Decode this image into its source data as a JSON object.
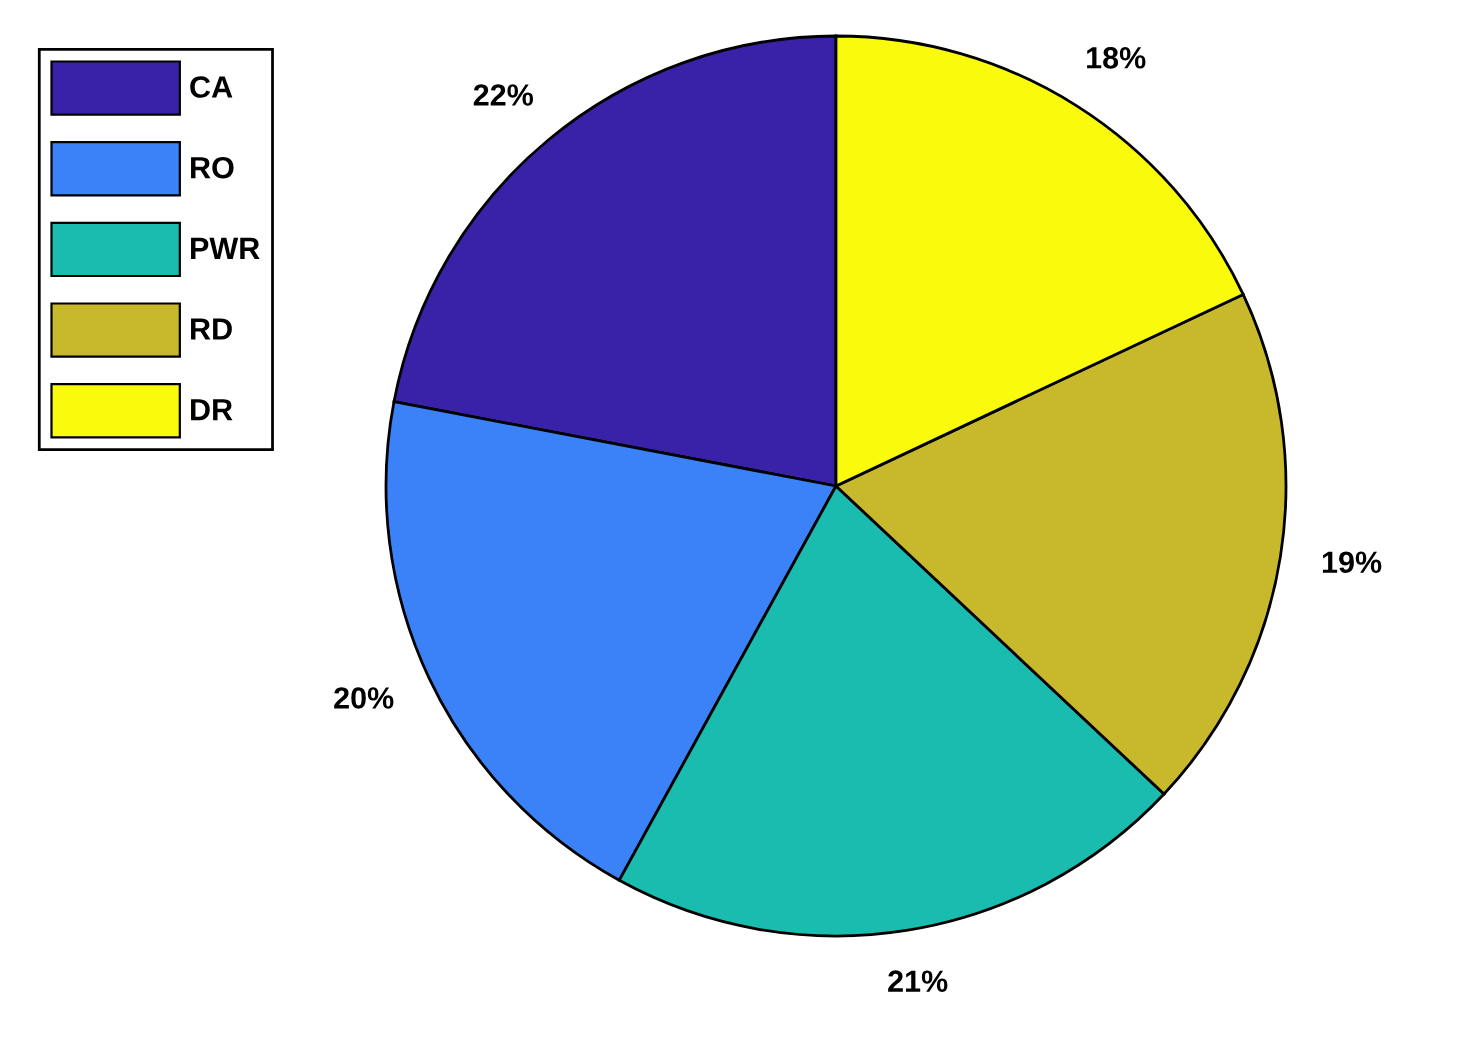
{
  "chart_data": {
    "type": "pie",
    "categories": [
      "CA",
      "RO",
      "PWR",
      "RD",
      "DR"
    ],
    "values": [
      22,
      20,
      21,
      19,
      18
    ],
    "colors": [
      "#3a22a8",
      "#3b82f8",
      "#1bbcb0",
      "#c8b92c",
      "#fafa0c"
    ],
    "value_labels": [
      "22%",
      "20%",
      "21%",
      "19%",
      "18%"
    ],
    "legend": "top left"
  }
}
